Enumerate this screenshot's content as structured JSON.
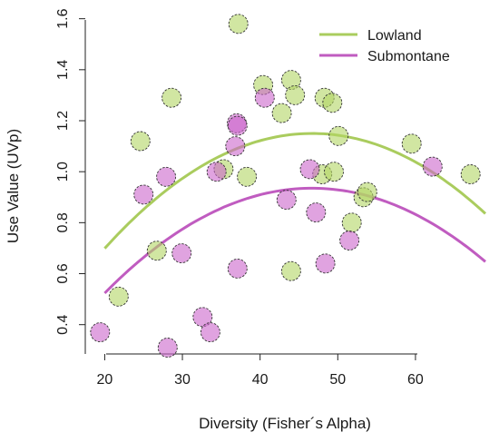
{
  "chart_data": {
    "type": "scatter",
    "title": "",
    "xlabel": "Diversity (Fisher´s Alpha)",
    "ylabel": "Use Value (UVp)",
    "xlim": [
      17.5,
      69
    ],
    "ylim": [
      0.285,
      1.645
    ],
    "x_ticks": [
      20,
      30,
      40,
      50,
      60
    ],
    "y_ticks": [
      0.4,
      0.6,
      0.8,
      1.0,
      1.2,
      1.4,
      1.6
    ],
    "x_tick_labels": [
      "20",
      "30",
      "40",
      "50",
      "60"
    ],
    "y_tick_labels": [
      "0.4",
      "0.6",
      "0.8",
      "1.0",
      "1.2",
      "1.4",
      "1.6"
    ],
    "grid": false,
    "legend_position": "top-right",
    "series": [
      {
        "name": "Lowland",
        "color": "#aacc5e",
        "fill": "rgba(178,214,100,0.6)",
        "points": [
          {
            "x": 21.8,
            "y": 0.51
          },
          {
            "x": 24.6,
            "y": 1.12
          },
          {
            "x": 26.7,
            "y": 0.69
          },
          {
            "x": 28.6,
            "y": 1.29
          },
          {
            "x": 35.3,
            "y": 1.01
          },
          {
            "x": 37.2,
            "y": 1.58
          },
          {
            "x": 38.3,
            "y": 0.98
          },
          {
            "x": 40.4,
            "y": 1.34
          },
          {
            "x": 42.8,
            "y": 1.23
          },
          {
            "x": 44.0,
            "y": 1.36
          },
          {
            "x": 44.5,
            "y": 1.3
          },
          {
            "x": 44.0,
            "y": 0.61
          },
          {
            "x": 48.3,
            "y": 1.29
          },
          {
            "x": 49.3,
            "y": 1.27
          },
          {
            "x": 48.0,
            "y": 0.99
          },
          {
            "x": 49.5,
            "y": 1.0
          },
          {
            "x": 50.1,
            "y": 1.14
          },
          {
            "x": 51.8,
            "y": 0.8
          },
          {
            "x": 53.3,
            "y": 0.9
          },
          {
            "x": 53.8,
            "y": 0.92
          },
          {
            "x": 59.5,
            "y": 1.11
          },
          {
            "x": 67.1,
            "y": 0.99
          }
        ],
        "fit": {
          "type": "quadratic",
          "x_start": 20,
          "x_end": 69,
          "coefficients": [
            -0.0006328,
            0.059102,
            -0.23
          ]
        }
      },
      {
        "name": "Submontane",
        "color": "#c05cc0",
        "fill": "rgba(204,102,204,0.6)",
        "points": [
          {
            "x": 19.4,
            "y": 0.37
          },
          {
            "x": 25.0,
            "y": 0.91
          },
          {
            "x": 27.9,
            "y": 0.98
          },
          {
            "x": 28.1,
            "y": 0.31
          },
          {
            "x": 29.9,
            "y": 0.68
          },
          {
            "x": 32.6,
            "y": 0.43
          },
          {
            "x": 33.6,
            "y": 0.37
          },
          {
            "x": 34.4,
            "y": 1.0
          },
          {
            "x": 36.8,
            "y": 1.1
          },
          {
            "x": 37.0,
            "y": 1.19
          },
          {
            "x": 37.1,
            "y": 1.18
          },
          {
            "x": 37.1,
            "y": 0.62
          },
          {
            "x": 40.6,
            "y": 1.29
          },
          {
            "x": 43.4,
            "y": 0.89
          },
          {
            "x": 46.4,
            "y": 1.01
          },
          {
            "x": 47.2,
            "y": 0.84
          },
          {
            "x": 48.4,
            "y": 0.64
          },
          {
            "x": 51.5,
            "y": 0.73
          },
          {
            "x": 62.2,
            "y": 1.02
          }
        ],
        "fit": {
          "type": "quadratic",
          "x_start": 20,
          "x_end": 69,
          "coefficients": [
            -0.0005785,
            0.054002,
            -0.325
          ]
        }
      }
    ]
  }
}
